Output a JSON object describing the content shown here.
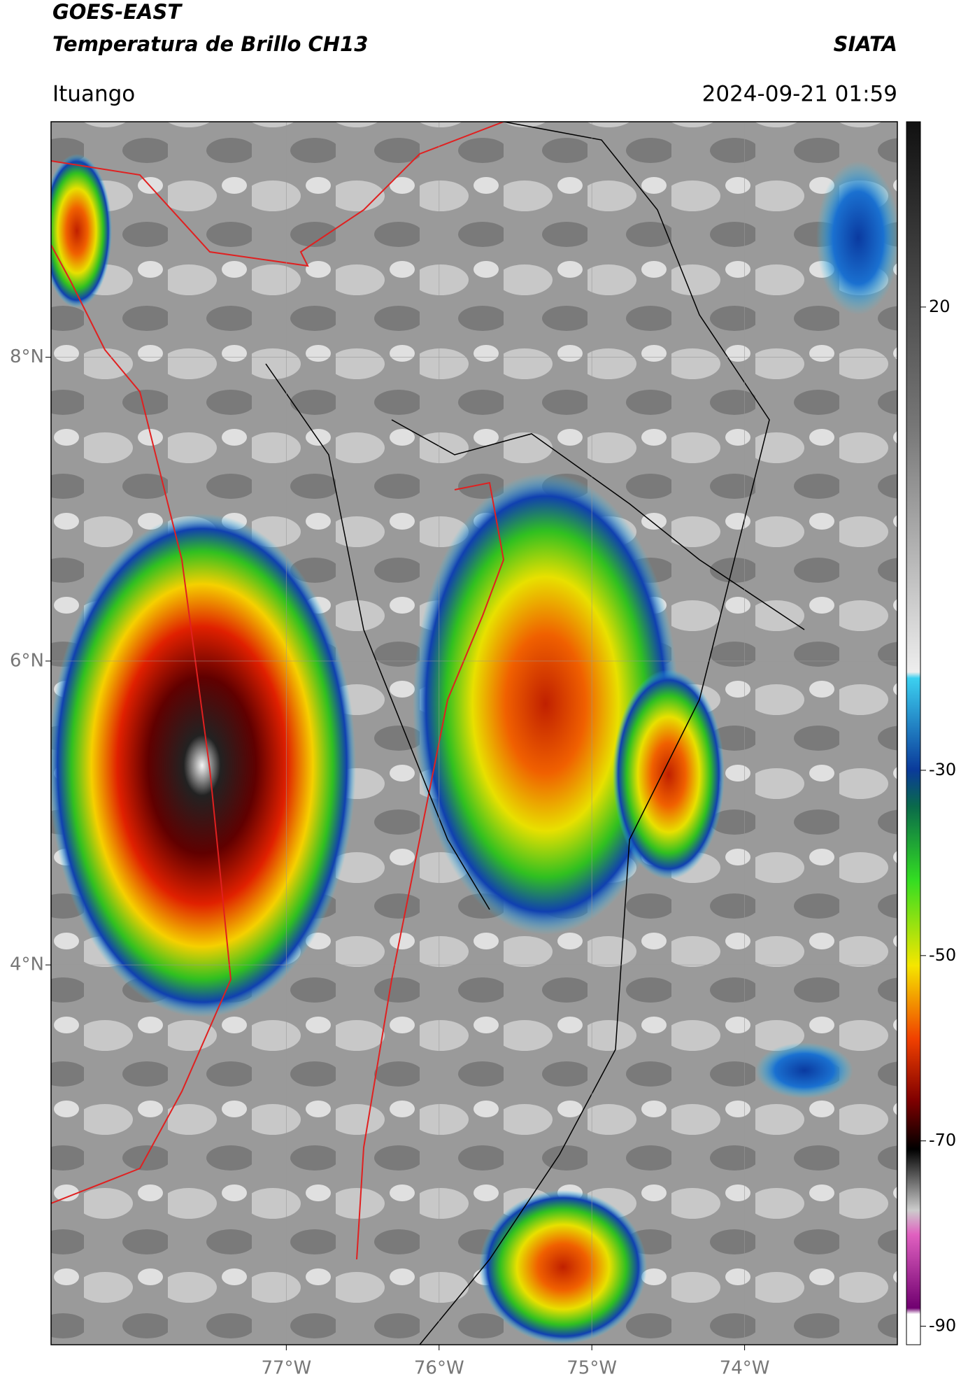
{
  "header": {
    "title": "GOES-EAST",
    "subtitle": "Temperatura de Brillo CH13",
    "source": "SIATA",
    "location": "Ituango",
    "datetime": "2024-09-21 01:59"
  },
  "map": {
    "xlim": [
      -78.54,
      -73
    ],
    "ylim": [
      1.5,
      9.55
    ],
    "xticks": [
      {
        "value": -77,
        "label": "77°W"
      },
      {
        "value": -76,
        "label": "76°W"
      },
      {
        "value": -75,
        "label": "75°W"
      },
      {
        "value": -74,
        "label": "74°W"
      }
    ],
    "yticks": [
      {
        "value": 8,
        "label": "8°N"
      },
      {
        "value": 6,
        "label": "6°N"
      },
      {
        "value": 4,
        "label": "4°N"
      }
    ],
    "grid": true
  },
  "colorbar": {
    "lim": [
      -92,
      40
    ],
    "ticks": [
      20,
      -30,
      -50,
      -70,
      -90
    ]
  }
}
